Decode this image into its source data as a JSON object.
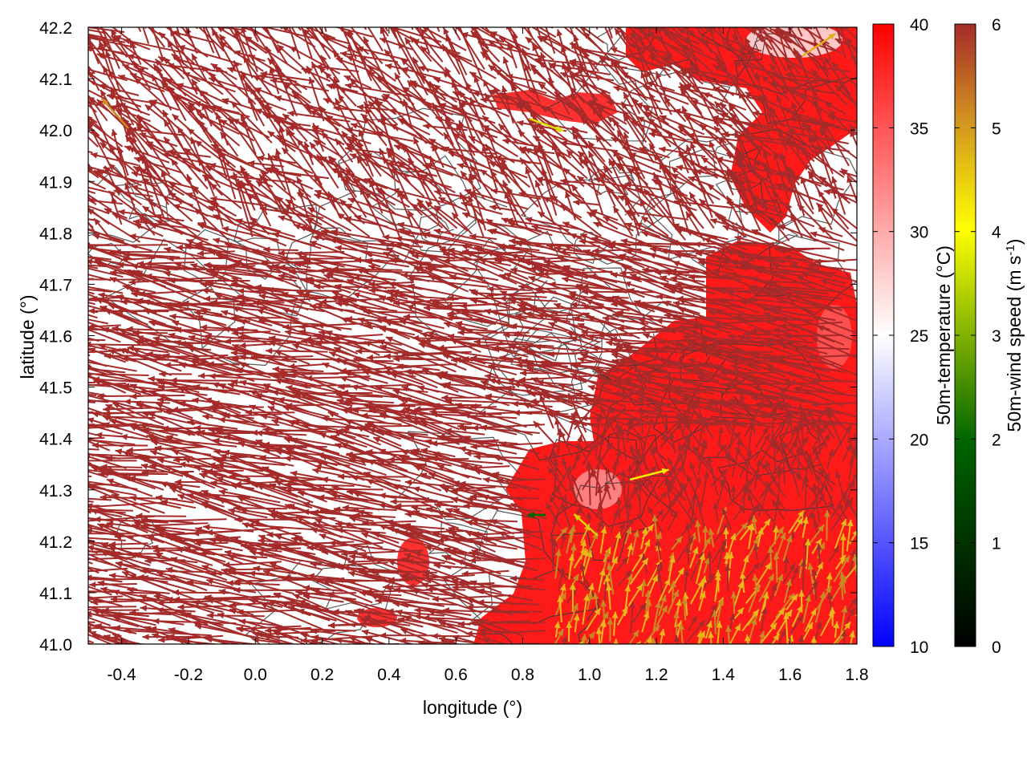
{
  "chart_data": {
    "type": "vector-field",
    "xlabel": "longitude (°)",
    "ylabel": "latitude (°)",
    "xlim": [
      -0.5,
      1.8
    ],
    "ylim": [
      41.0,
      42.2
    ],
    "xticks": [
      -0.4,
      -0.2,
      0.0,
      0.2,
      0.4,
      0.6,
      0.8,
      1.0,
      1.2,
      1.4,
      1.6,
      1.8
    ],
    "yticks": [
      41.0,
      41.1,
      41.2,
      41.3,
      41.4,
      41.5,
      41.6,
      41.7,
      41.8,
      41.9,
      42.0,
      42.1,
      42.2
    ],
    "xtick_labels": [
      "-0.4",
      "-0.2",
      "0.0",
      "0.2",
      "0.4",
      "0.6",
      "0.8",
      "1.0",
      "1.2",
      "1.4",
      "1.6",
      "1.8"
    ],
    "ytick_labels": [
      "41.0",
      "41.1",
      "41.2",
      "41.3",
      "41.4",
      "41.5",
      "41.6",
      "41.7",
      "41.8",
      "41.9",
      "42.0",
      "42.1",
      "42.2"
    ],
    "temperature_colorbar": {
      "label": "50m-temperature (°C)",
      "range": [
        10,
        40
      ],
      "ticks": [
        "10",
        "15",
        "20",
        "25",
        "30",
        "35",
        "40"
      ],
      "colors": [
        "#0000ff",
        "#ffffff",
        "#ff0000"
      ]
    },
    "wind_colorbar": {
      "label": "50m-wind speed (m s-1)",
      "range": [
        0,
        6
      ],
      "ticks": [
        "0",
        "1",
        "2",
        "3",
        "4",
        "5",
        "6"
      ],
      "colors": [
        "#000000",
        "#006400",
        "#ffff00",
        "#a52a2a"
      ]
    },
    "grid": false
  }
}
